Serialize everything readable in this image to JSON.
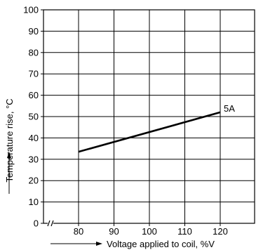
{
  "chart_data": {
    "type": "line",
    "xlabel": "Voltage applied to coil, %V",
    "ylabel": "Temperature rise, °C",
    "x_ticks": [
      "80",
      "90",
      "100",
      "110",
      "120"
    ],
    "y_ticks": [
      "0",
      "10",
      "20",
      "30",
      "40",
      "50",
      "60",
      "70",
      "80",
      "90",
      "100"
    ],
    "ylim": [
      0,
      100
    ],
    "grid": true,
    "series": [
      {
        "name": "5A",
        "points": [
          {
            "x": 80,
            "y": 33.5
          },
          {
            "x": 120,
            "y": 52
          }
        ]
      }
    ]
  }
}
